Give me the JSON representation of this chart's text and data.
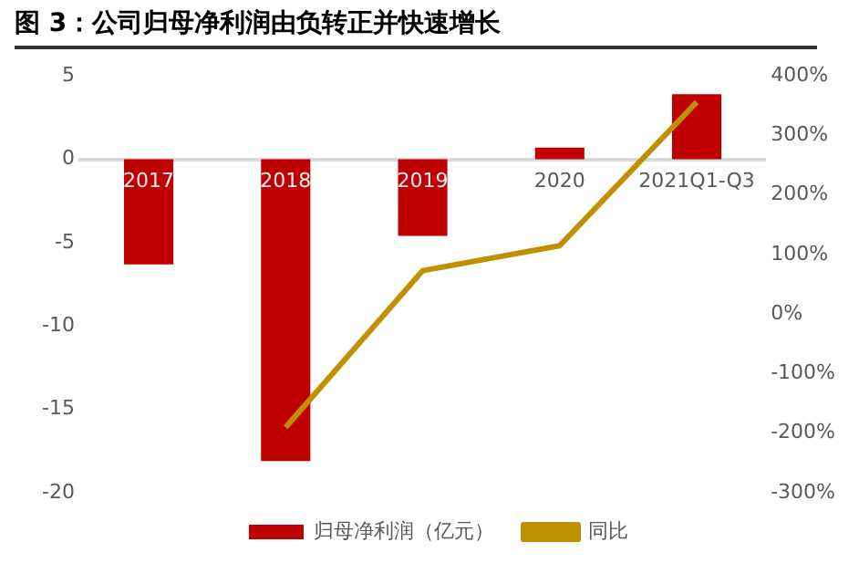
{
  "chart_data": {
    "type": "bar",
    "title": "图 3：公司归母净利润由负转正并快速增长",
    "categories": [
      "2017",
      "2018",
      "2019",
      "2020",
      "2021Q1-Q3"
    ],
    "series": [
      {
        "name": "归母净利润（亿元）",
        "color": "#c00000",
        "values": [
          -6.3,
          -18.1,
          -4.6,
          0.7,
          3.9
        ]
      },
      {
        "name": "同比",
        "type": "line",
        "axis": "y2",
        "color": "#bf9000",
        "values": [
          null,
          -190,
          73,
          115,
          356
        ]
      }
    ],
    "ylim": [
      -20,
      5
    ],
    "yticks": [
      -20,
      -15,
      -10,
      -5,
      0,
      5
    ],
    "y2lim": [
      -300,
      400
    ],
    "y2ticks": [
      {
        "value": -300,
        "label": "-300%"
      },
      {
        "value": -200,
        "label": "-200%"
      },
      {
        "value": -100,
        "label": "-100%"
      },
      {
        "value": 0,
        "label": "0%"
      },
      {
        "value": 100,
        "label": "100%"
      },
      {
        "value": 200,
        "label": "200%"
      },
      {
        "value": 300,
        "label": "300%"
      },
      {
        "value": 400,
        "label": "400%"
      }
    ],
    "grid": false,
    "legend": "bottom",
    "marker": "none",
    "line_style": "solid"
  }
}
